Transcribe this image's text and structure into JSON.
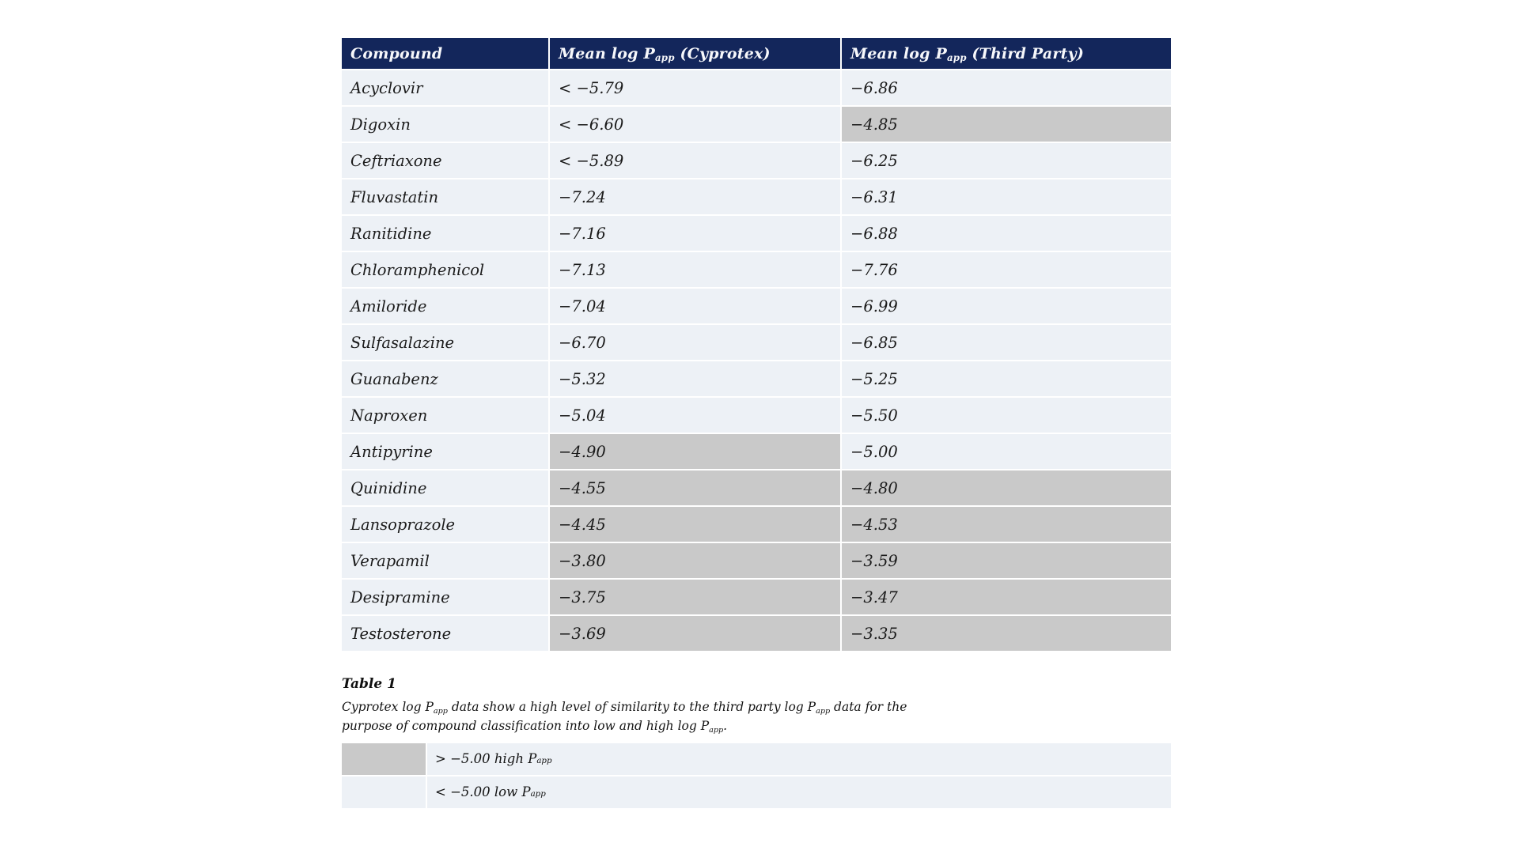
{
  "colors": {
    "header_bg": "#13265b",
    "header_text": "#ffffff",
    "row_bg": "#edf1f6",
    "highlight_bg": "#c9c9c9",
    "body_text": "#1a1a1a"
  },
  "table": {
    "headers": [
      {
        "pre": "Compound",
        "sub": "",
        "post": ""
      },
      {
        "pre": "Mean log P",
        "sub": "app",
        "post": " (Cyprotex)"
      },
      {
        "pre": "Mean log P",
        "sub": "app",
        "post": " (Third Party)"
      }
    ],
    "rows": [
      {
        "compound": "Acyclovir",
        "cyprotex": "< −5.79",
        "third_party": "−6.86",
        "cyprotex_high": false,
        "third_party_high": false
      },
      {
        "compound": "Digoxin",
        "cyprotex": "< −6.60",
        "third_party": "−4.85",
        "cyprotex_high": false,
        "third_party_high": true
      },
      {
        "compound": "Ceftriaxone",
        "cyprotex": "< −5.89",
        "third_party": "−6.25",
        "cyprotex_high": false,
        "third_party_high": false
      },
      {
        "compound": "Fluvastatin",
        "cyprotex": "−7.24",
        "third_party": "−6.31",
        "cyprotex_high": false,
        "third_party_high": false
      },
      {
        "compound": "Ranitidine",
        "cyprotex": "−7.16",
        "third_party": "−6.88",
        "cyprotex_high": false,
        "third_party_high": false
      },
      {
        "compound": "Chloramphenicol",
        "cyprotex": "−7.13",
        "third_party": "−7.76",
        "cyprotex_high": false,
        "third_party_high": false
      },
      {
        "compound": "Amiloride",
        "cyprotex": "−7.04",
        "third_party": "−6.99",
        "cyprotex_high": false,
        "third_party_high": false
      },
      {
        "compound": "Sulfasalazine",
        "cyprotex": "−6.70",
        "third_party": "−6.85",
        "cyprotex_high": false,
        "third_party_high": false
      },
      {
        "compound": "Guanabenz",
        "cyprotex": "−5.32",
        "third_party": "−5.25",
        "cyprotex_high": false,
        "third_party_high": false
      },
      {
        "compound": "Naproxen",
        "cyprotex": "−5.04",
        "third_party": "−5.50",
        "cyprotex_high": false,
        "third_party_high": false
      },
      {
        "compound": "Antipyrine",
        "cyprotex": "−4.90",
        "third_party": "−5.00",
        "cyprotex_high": true,
        "third_party_high": false
      },
      {
        "compound": "Quinidine",
        "cyprotex": "−4.55",
        "third_party": "−4.80",
        "cyprotex_high": true,
        "third_party_high": true
      },
      {
        "compound": "Lansoprazole",
        "cyprotex": "−4.45",
        "third_party": "−4.53",
        "cyprotex_high": true,
        "third_party_high": true
      },
      {
        "compound": "Verapamil",
        "cyprotex": "−3.80",
        "third_party": "−3.59",
        "cyprotex_high": true,
        "third_party_high": true
      },
      {
        "compound": "Desipramine",
        "cyprotex": "−3.75",
        "third_party": "−3.47",
        "cyprotex_high": true,
        "third_party_high": true
      },
      {
        "compound": "Testosterone",
        "cyprotex": "−3.69",
        "third_party": "−3.35",
        "cyprotex_high": true,
        "third_party_high": true
      }
    ]
  },
  "caption": {
    "title": "Table 1",
    "body_parts": [
      {
        "text": "Cyprotex log P"
      },
      {
        "sub": "app"
      },
      {
        "text": " data show a high level of similarity to the third party log P"
      },
      {
        "sub": "app"
      },
      {
        "text": " data for the purpose of compound classification into low and high log P"
      },
      {
        "sub": "app"
      },
      {
        "text": "."
      }
    ]
  },
  "legend": {
    "items": [
      {
        "swatch": "high",
        "pre": "> −5.00 high P",
        "sub": "app"
      },
      {
        "swatch": "low",
        "pre": "< −5.00 low P",
        "sub": "app"
      }
    ]
  },
  "chart_data": {
    "type": "table",
    "title": "Table 1",
    "columns": [
      "Compound",
      "Mean log Papp (Cyprotex)",
      "Mean log Papp (Third Party)"
    ],
    "rows": [
      [
        "Acyclovir",
        "< −5.79",
        "−6.86"
      ],
      [
        "Digoxin",
        "< −6.60",
        "−4.85"
      ],
      [
        "Ceftriaxone",
        "< −5.89",
        "−6.25"
      ],
      [
        "Fluvastatin",
        "−7.24",
        "−6.31"
      ],
      [
        "Ranitidine",
        "−7.16",
        "−6.88"
      ],
      [
        "Chloramphenicol",
        "−7.13",
        "−7.76"
      ],
      [
        "Amiloride",
        "−7.04",
        "−6.99"
      ],
      [
        "Sulfasalazine",
        "−6.70",
        "−6.85"
      ],
      [
        "Guanabenz",
        "−5.32",
        "−5.25"
      ],
      [
        "Naproxen",
        "−5.04",
        "−5.50"
      ],
      [
        "Antipyrine",
        "−4.90",
        "−5.00"
      ],
      [
        "Quinidine",
        "−4.55",
        "−4.80"
      ],
      [
        "Lansoprazole",
        "−4.45",
        "−4.53"
      ],
      [
        "Verapamil",
        "−3.80",
        "−3.59"
      ],
      [
        "Desipramine",
        "−3.75",
        "−3.47"
      ],
      [
        "Testosterone",
        "−3.69",
        "−3.35"
      ]
    ],
    "highlighted_cells_grey": [
      [
        "Digoxin",
        "Mean log Papp (Third Party)"
      ],
      [
        "Antipyrine",
        "Mean log Papp (Cyprotex)"
      ],
      [
        "Quinidine",
        "both"
      ],
      [
        "Lansoprazole",
        "both"
      ],
      [
        "Verapamil",
        "both"
      ],
      [
        "Desipramine",
        "both"
      ],
      [
        "Testosterone",
        "both"
      ]
    ],
    "legend": [
      "> −5.00 high Papp (grey shading)",
      "< −5.00 low Papp (light shading)"
    ],
    "caption": "Cyprotex log Papp data show a high level of similarity to the third party log Papp data for the purpose of compound classification into low and high log Papp."
  }
}
